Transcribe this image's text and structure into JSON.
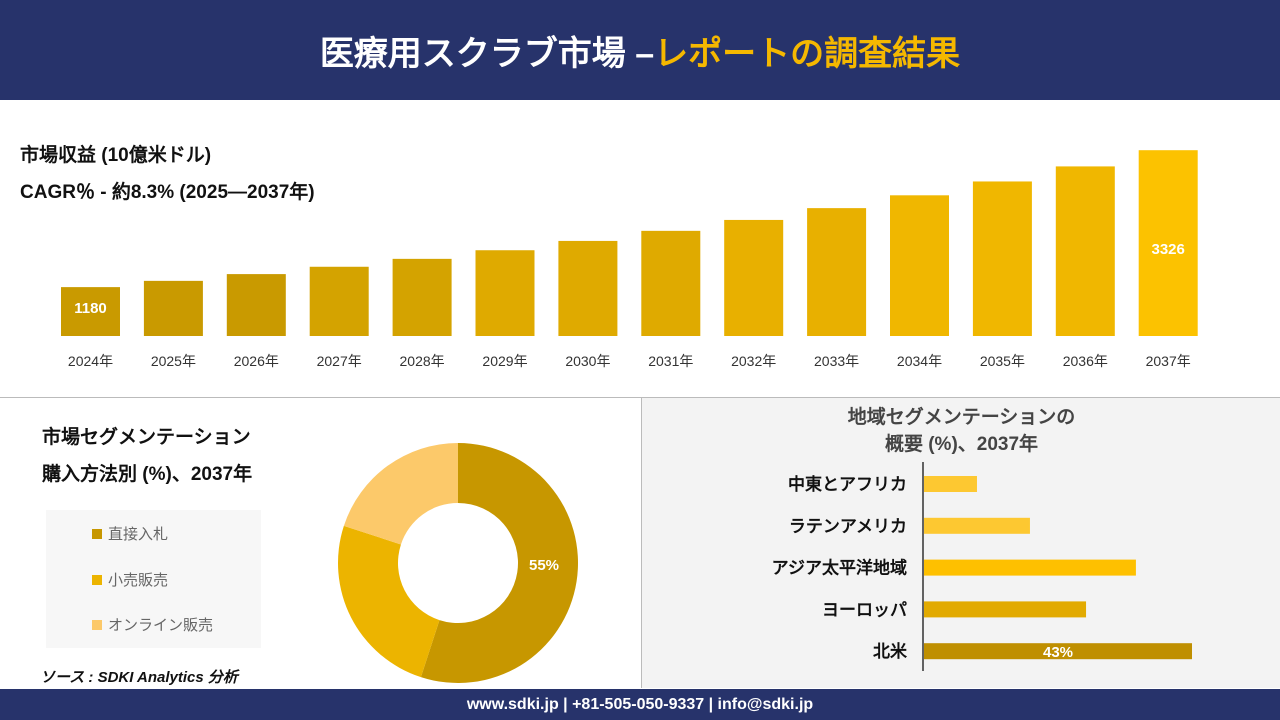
{
  "header": {
    "title_white": "医療用スクラブ市場 –",
    "title_yellow": "レポートの調査結果"
  },
  "revenue": {
    "label": "市場収益 (10億米ドル)",
    "cagr": "CAGR％ - 約8.3% (2025―2037年)"
  },
  "segment": {
    "title1": "市場セグメンテーション",
    "title2": "購入方法別 (%)、2037年"
  },
  "region": {
    "title1": "地域セグメンテーションの",
    "title2": "概要 (%)、2037年"
  },
  "source": "ソース : SDKI Analytics 分析",
  "footer": "www.sdki.jp | +81-505-050-9337 | info@sdki.jp",
  "chart_data": [
    {
      "type": "bar",
      "categories": [
        "2024年",
        "2025年",
        "2026年",
        "2027年",
        "2028年",
        "2029年",
        "2030年",
        "2031年",
        "2032年",
        "2033年",
        "2034年",
        "2035年",
        "2036年",
        "2037年"
      ],
      "values": [
        1180,
        1278,
        1384,
        1499,
        1623,
        1758,
        1904,
        2062,
        2233,
        2418,
        2619,
        2836,
        3072,
        3326
      ],
      "data_labels": {
        "0": "1180",
        "13": "3326"
      },
      "colors": [
        "#c99a00",
        "#d4a300",
        "#dfaa00",
        "#e8b000",
        "#f0b700",
        "#fcc200"
      ]
    },
    {
      "type": "pie",
      "donut": true,
      "categories": [
        "直接入札",
        "小売販売",
        "オンライン販売"
      ],
      "values": [
        55,
        25,
        20
      ],
      "data_labels": {
        "0": "55%"
      },
      "colors": [
        "#c79700",
        "#ecb400",
        "#fcc96a"
      ]
    },
    {
      "type": "bar",
      "orientation": "horizontal",
      "categories": [
        "中東とアフリカ",
        "ラテンアメリカ",
        "アジア太平洋地域",
        "ヨーロッパ",
        "北米"
      ],
      "values": [
        8.5,
        17,
        34,
        26,
        43
      ],
      "data_labels": {
        "4": "43%"
      },
      "colors": [
        "#fdc831",
        "#fdc831",
        "#fec000",
        "#e2aa00",
        "#bf8f00"
      ]
    }
  ]
}
